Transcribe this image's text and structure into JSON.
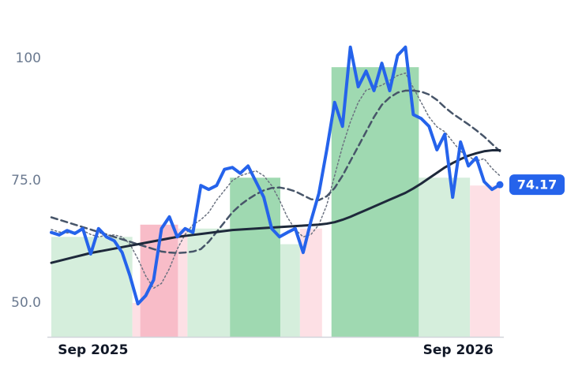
{
  "chart_data": {
    "type": "line",
    "x": [
      0,
      1,
      2,
      3,
      4,
      5,
      6,
      7,
      8,
      9,
      10,
      11,
      12,
      13,
      14,
      15,
      16,
      17,
      18,
      19,
      20,
      21,
      22,
      23,
      24,
      25,
      26,
      27,
      28,
      29,
      30,
      31,
      32,
      33,
      34,
      35,
      36,
      37,
      38,
      39,
      40,
      41,
      42,
      43,
      44,
      45,
      46,
      47,
      48,
      49,
      50,
      51,
      52,
      53,
      54,
      55,
      56,
      57
    ],
    "xlim": [
      0,
      57
    ],
    "xticks": [
      {
        "value": 5.3,
        "label": "Sep 2025"
      },
      {
        "value": 51.7,
        "label": "Sep 2026"
      }
    ],
    "ylim": [
      43,
      111
    ],
    "yticks": [
      {
        "value": 50,
        "label": "50.0"
      },
      {
        "value": 75,
        "label": "75.0"
      },
      100
    ],
    "bands": [
      {
        "start": 0,
        "end": 10.3,
        "value": 63.5,
        "color": "#d5eedc"
      },
      {
        "start": 10.3,
        "end": 11.3,
        "value": 50,
        "color": "#fde0e5"
      },
      {
        "start": 11.3,
        "end": 16.1,
        "value": 66,
        "color": "#f8bcc8"
      },
      {
        "start": 16.1,
        "end": 17.3,
        "value": 65.2,
        "color": "#fde0e5"
      },
      {
        "start": 17.3,
        "end": 22.7,
        "value": 65.2,
        "color": "#d5eedc"
      },
      {
        "start": 22.7,
        "end": 29.1,
        "value": 75.6,
        "color": "#9fd9b1"
      },
      {
        "start": 29.1,
        "end": 31.6,
        "value": 62,
        "color": "#d5eedc"
      },
      {
        "start": 31.6,
        "end": 34.4,
        "value": 65.2,
        "color": "#fde0e5"
      },
      {
        "start": 35.6,
        "end": 46.7,
        "value": 98.2,
        "color": "#9fd9b1"
      },
      {
        "start": 46.7,
        "end": 53.2,
        "value": 75.6,
        "color": "#d5eedc"
      },
      {
        "start": 53.2,
        "end": 57,
        "value": 74,
        "color": "#fde0e5"
      }
    ],
    "series": [
      {
        "color": "#6b7280",
        "style": "dotted",
        "width": 1.5,
        "values": [
          65,
          64.5,
          64.3,
          64.5,
          64.8,
          64.0,
          63.5,
          63.8,
          63.9,
          63.5,
          62,
          59,
          55.5,
          53,
          54,
          57,
          61,
          64,
          66,
          67,
          68.5,
          71,
          73,
          75,
          76,
          76.5,
          77,
          76,
          74,
          71,
          67.5,
          65,
          63.5,
          64,
          66,
          70,
          76,
          82,
          87,
          91,
          93.5,
          94,
          94.5,
          95.5,
          96.5,
          97,
          94,
          91,
          88,
          86,
          85,
          83,
          81,
          80,
          79,
          79.5,
          77.5,
          76
        ]
      },
      {
        "color": "#475569",
        "style": "dashed",
        "width": 2.5,
        "values": [
          67.5,
          67.0,
          66.5,
          66.0,
          65.5,
          65.0,
          64.5,
          64.0,
          63.5,
          63.0,
          62.5,
          62.0,
          61.5,
          61.0,
          60.5,
          60.3,
          60.2,
          60.3,
          60.5,
          61.0,
          62.5,
          64.5,
          66.5,
          68.5,
          70.0,
          71.2,
          72.2,
          73.0,
          73.5,
          73.6,
          73.3,
          72.8,
          72.0,
          71.2,
          71.0,
          71.8,
          73.5,
          76.0,
          79.0,
          82.0,
          85.0,
          88.0,
          90.5,
          92.0,
          93.0,
          93.4,
          93.4,
          93.2,
          92.6,
          91.5,
          90.0,
          88.7,
          87.6,
          86.5,
          85.3,
          84.0,
          82.5,
          81.0
        ]
      },
      {
        "color": "#1e293b",
        "style": "solid",
        "width": 3,
        "values": [
          58.2,
          58.6,
          59.0,
          59.4,
          59.8,
          60.2,
          60.5,
          60.8,
          61.1,
          61.4,
          61.7,
          62.0,
          62.3,
          62.6,
          62.9,
          63.2,
          63.5,
          63.7,
          63.9,
          64.1,
          64.3,
          64.5,
          64.7,
          64.9,
          65.0,
          65.1,
          65.2,
          65.3,
          65.4,
          65.5,
          65.6,
          65.7,
          65.8,
          65.9,
          66.0,
          66.2,
          66.5,
          67.0,
          67.6,
          68.3,
          69.0,
          69.7,
          70.4,
          71.1,
          71.8,
          72.5,
          73.4,
          74.4,
          75.5,
          76.6,
          77.7,
          78.6,
          79.4,
          80.1,
          80.6,
          81.0,
          81.2,
          81.2
        ]
      },
      {
        "color": "#2563eb",
        "style": "solid",
        "width": 4,
        "values": [
          64.4,
          63.9,
          64.8,
          64.2,
          65.2,
          60.0,
          65.2,
          63.5,
          62.7,
          60.3,
          55.5,
          49.8,
          51.5,
          54.7,
          65.2,
          67.6,
          63.5,
          65.2,
          64.4,
          74,
          73.2,
          74,
          77.3,
          77.7,
          76.5,
          78,
          74.8,
          71.6,
          65.2,
          63.5,
          64.4,
          65.2,
          60.3,
          66.8,
          72.4,
          81.3,
          91,
          86.1,
          102.3,
          94.2,
          97.4,
          93.4,
          99,
          93.4,
          100.6,
          102.3,
          88.5,
          87.7,
          86.1,
          81.3,
          84.5,
          71.6,
          82.9,
          78,
          79.7,
          74.8,
          73.2,
          74.17
        ]
      }
    ],
    "last_value": 74.17
  }
}
